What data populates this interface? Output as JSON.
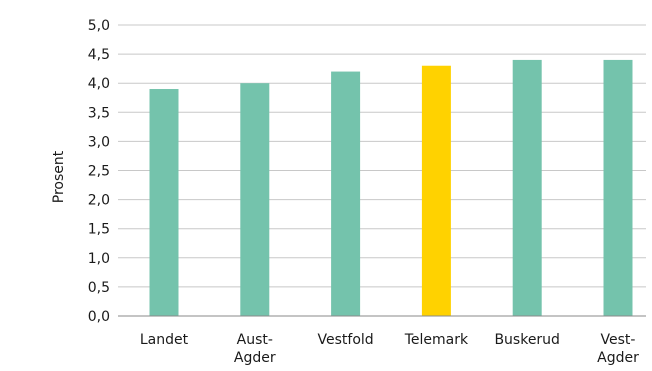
{
  "chart_data": {
    "type": "bar",
    "title": "",
    "xlabel": "",
    "ylabel": "Prosent",
    "ylim": [
      0,
      5.0
    ],
    "yticks": [
      "0,0",
      "0,5",
      "1,0",
      "1,5",
      "2,0",
      "2,5",
      "3,0",
      "3,5",
      "4,0",
      "4,5",
      "5,0"
    ],
    "ytick_values": [
      0,
      0.5,
      1.0,
      1.5,
      2.0,
      2.5,
      3.0,
      3.5,
      4.0,
      4.5,
      5.0
    ],
    "grid": true,
    "legend": "none",
    "categories": [
      [
        "Landet"
      ],
      [
        "Aust-",
        "Agder"
      ],
      [
        "Vestfold"
      ],
      [
        "Telemark"
      ],
      [
        "Buskerud"
      ],
      [
        "Vest-",
        "Agder"
      ]
    ],
    "values": [
      3.9,
      4.0,
      4.2,
      4.3,
      4.4,
      4.4
    ],
    "highlight_index": 3,
    "colors": {
      "bar": "#74c3ac",
      "highlight": "#ffd200",
      "grid": "#c8c8c8",
      "text": "#1a1a1a"
    }
  }
}
